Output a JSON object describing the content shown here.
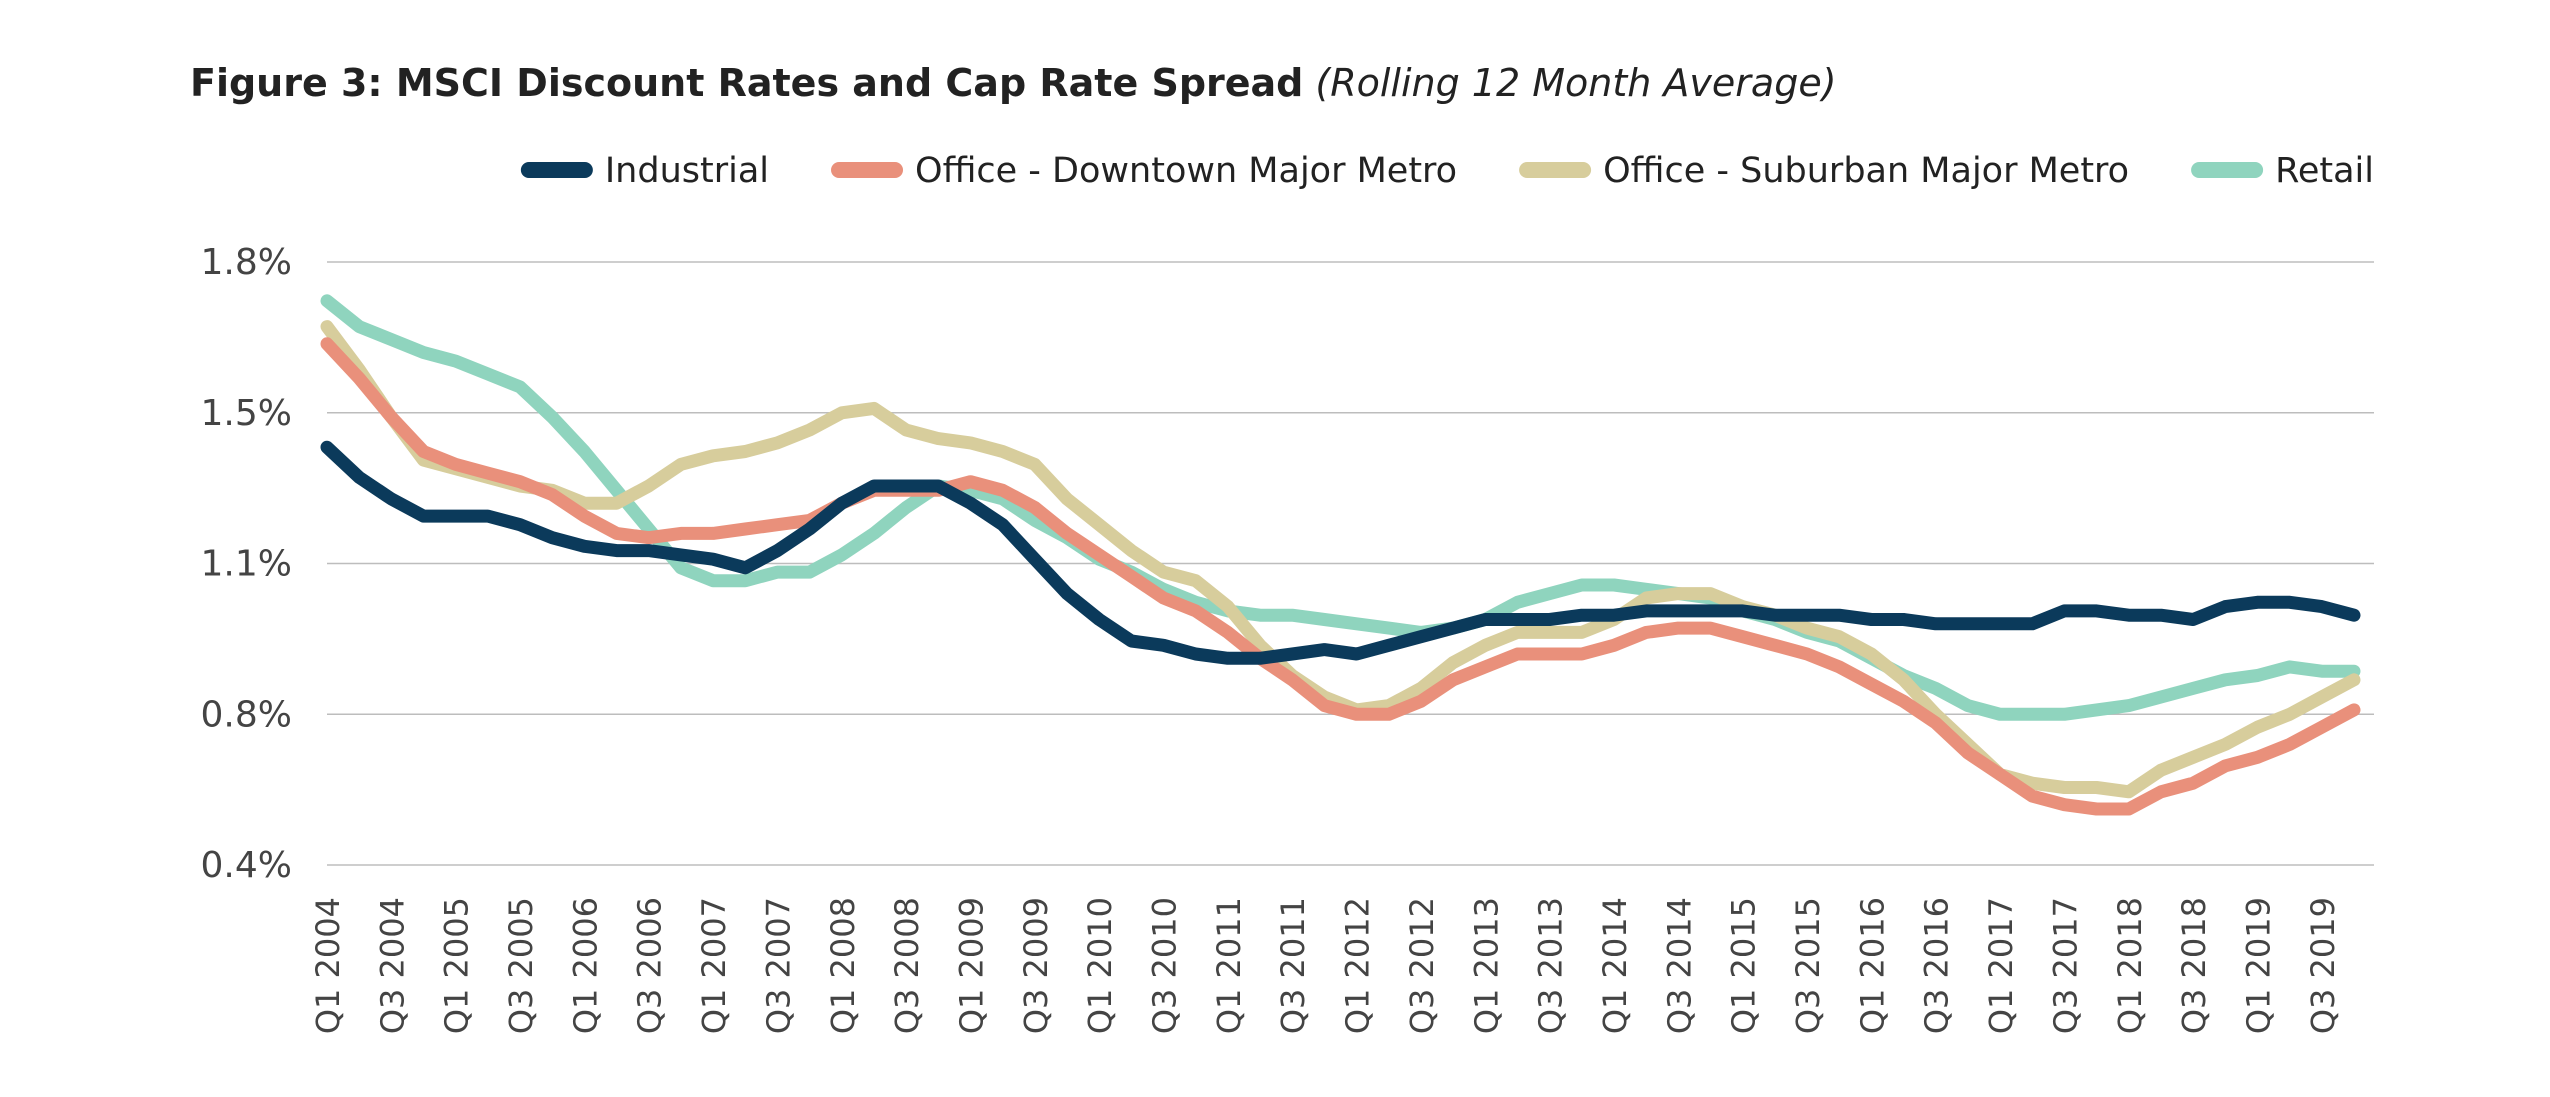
{
  "chart_data": {
    "type": "line",
    "title": "Figure 3: MSCI Discount Rates and Cap Rate Spread",
    "subtitle": "(Rolling 12 Month Average)",
    "categories": [
      "Q1 2004",
      null,
      "Q3 2004",
      null,
      "Q1 2005",
      null,
      "Q3 2005",
      null,
      "Q1 2006",
      null,
      "Q3 2006",
      null,
      "Q1 2007",
      null,
      "Q3 2007",
      null,
      "Q1 2008",
      null,
      "Q3 2008",
      null,
      "Q1 2009",
      null,
      "Q3 2009",
      null,
      "Q1 2010",
      null,
      "Q3 2010",
      null,
      "Q1 2011",
      null,
      "Q3 2011",
      null,
      "Q1 2012",
      null,
      "Q3 2012",
      null,
      "Q1 2013",
      null,
      "Q3 2013",
      null,
      "Q1 2014",
      null,
      "Q3 2014",
      null,
      "Q1 2015",
      null,
      "Q3 2015",
      null,
      "Q1 2016",
      null,
      "Q3 2016",
      null,
      "Q1 2017",
      null,
      "Q3 2017",
      null,
      "Q1 2018",
      null,
      "Q3 2018",
      null,
      "Q1 2019",
      null,
      "Q3 2019",
      null
    ],
    "series": [
      {
        "name": "Industrial",
        "color": "#0b3a5b",
        "values": [
          1.37,
          1.3,
          1.25,
          1.21,
          1.21,
          1.21,
          1.19,
          1.16,
          1.14,
          1.13,
          1.13,
          1.12,
          1.11,
          1.09,
          1.13,
          1.18,
          1.24,
          1.28,
          1.28,
          1.28,
          1.24,
          1.19,
          1.11,
          1.03,
          0.97,
          0.92,
          0.91,
          0.89,
          0.88,
          0.88,
          0.89,
          0.9,
          0.89,
          0.91,
          0.93,
          0.95,
          0.97,
          0.97,
          0.97,
          0.98,
          0.98,
          0.99,
          0.99,
          0.99,
          0.99,
          0.98,
          0.98,
          0.98,
          0.97,
          0.97,
          0.96,
          0.96,
          0.96,
          0.96,
          0.99,
          0.99,
          0.98,
          0.98,
          0.97,
          1.0,
          1.01,
          1.01,
          1.0,
          0.98
        ]
      },
      {
        "name": "Office - Downtown Major Metro",
        "color": "#e9907b",
        "values": [
          1.61,
          1.53,
          1.44,
          1.36,
          1.33,
          1.31,
          1.29,
          1.26,
          1.21,
          1.17,
          1.16,
          1.17,
          1.17,
          1.18,
          1.19,
          1.2,
          1.24,
          1.27,
          1.27,
          1.27,
          1.29,
          1.27,
          1.23,
          1.17,
          1.12,
          1.07,
          1.02,
          0.99,
          0.94,
          0.88,
          0.83,
          0.77,
          0.75,
          0.75,
          0.78,
          0.83,
          0.86,
          0.89,
          0.89,
          0.89,
          0.91,
          0.94,
          0.95,
          0.95,
          0.93,
          0.91,
          0.89,
          0.86,
          0.82,
          0.78,
          0.73,
          0.66,
          0.61,
          0.56,
          0.54,
          0.53,
          0.53,
          0.57,
          0.59,
          0.63,
          0.65,
          0.68,
          0.72,
          0.76
        ]
      },
      {
        "name": "Office - Suburban Major Metro",
        "color": "#d7cd9c",
        "values": [
          1.65,
          1.55,
          1.44,
          1.34,
          1.32,
          1.3,
          1.28,
          1.27,
          1.24,
          1.24,
          1.28,
          1.33,
          1.35,
          1.36,
          1.38,
          1.41,
          1.45,
          1.46,
          1.41,
          1.39,
          1.38,
          1.36,
          1.33,
          1.25,
          1.19,
          1.13,
          1.08,
          1.06,
          1.0,
          0.91,
          0.84,
          0.79,
          0.76,
          0.77,
          0.81,
          0.87,
          0.91,
          0.94,
          0.94,
          0.94,
          0.97,
          1.02,
          1.03,
          1.03,
          1.0,
          0.98,
          0.95,
          0.93,
          0.89,
          0.83,
          0.75,
          0.68,
          0.61,
          0.59,
          0.58,
          0.58,
          0.57,
          0.62,
          0.65,
          0.68,
          0.72,
          0.75,
          0.79,
          0.83
        ]
      },
      {
        "name": "Retail",
        "color": "#8fd4be",
        "values": [
          1.71,
          1.65,
          1.62,
          1.59,
          1.57,
          1.54,
          1.51,
          1.44,
          1.36,
          1.27,
          1.18,
          1.09,
          1.06,
          1.06,
          1.08,
          1.08,
          1.12,
          1.17,
          1.23,
          1.28,
          1.27,
          1.25,
          1.2,
          1.16,
          1.11,
          1.08,
          1.04,
          1.01,
          0.99,
          0.98,
          0.98,
          0.97,
          0.96,
          0.95,
          0.94,
          0.95,
          0.97,
          1.01,
          1.03,
          1.05,
          1.05,
          1.04,
          1.03,
          1.02,
          0.99,
          0.97,
          0.94,
          0.92,
          0.88,
          0.84,
          0.81,
          0.77,
          0.75,
          0.75,
          0.75,
          0.76,
          0.77,
          0.79,
          0.81,
          0.83,
          0.84,
          0.86,
          0.85,
          0.85
        ]
      }
    ],
    "ylim": [
      0.4,
      1.8
    ],
    "yticks": [
      {
        "value": 0.4,
        "label": "0.4%"
      },
      {
        "value": 0.75,
        "label": "0.8%"
      },
      {
        "value": 1.1,
        "label": "1.1%"
      },
      {
        "value": 1.45,
        "label": "1.5%"
      },
      {
        "value": 1.8,
        "label": "1.8%"
      }
    ],
    "grid": true,
    "legend": "top"
  }
}
